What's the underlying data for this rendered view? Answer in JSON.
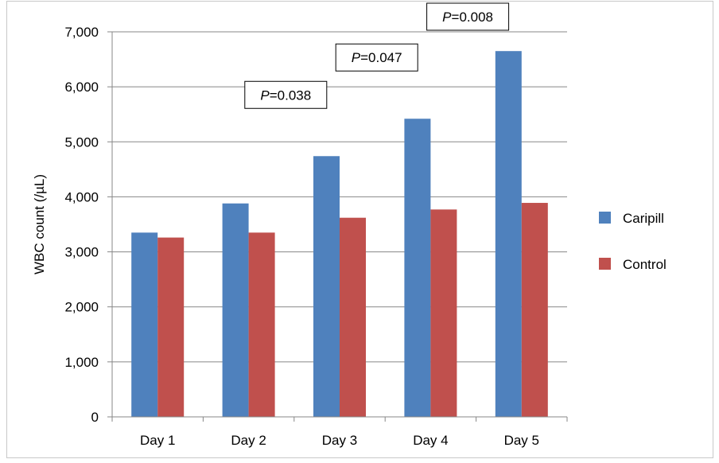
{
  "chart_data": {
    "type": "bar",
    "categories": [
      "Day 1",
      "Day 2",
      "Day 3",
      "Day 4",
      "Day 5"
    ],
    "series": [
      {
        "name": "Caripill",
        "values": [
          3350,
          3880,
          4740,
          5420,
          6650
        ],
        "color": "#4F81BD"
      },
      {
        "name": "Control",
        "values": [
          3260,
          3350,
          3620,
          3770,
          3890
        ],
        "color": "#C0504D"
      }
    ],
    "title": "",
    "xlabel": "",
    "ylabel": "WBC count (/µL)",
    "ylim": [
      0,
      7000
    ],
    "yticks": [
      0,
      1000,
      2000,
      3000,
      4000,
      5000,
      6000,
      7000
    ],
    "ytick_labels": [
      "0",
      "1,000",
      "2,000",
      "3,000",
      "4,000",
      "5,000",
      "6,000",
      "7,000"
    ],
    "grid": true,
    "legend_position": "right",
    "annotations": [
      {
        "category": "Day 2",
        "italic": "P",
        "text": "=0.038"
      },
      {
        "category": "Day 3",
        "italic": "P",
        "text": "=0.047"
      },
      {
        "category": "Day 4",
        "italic": "P",
        "text": "=0.008"
      }
    ]
  }
}
